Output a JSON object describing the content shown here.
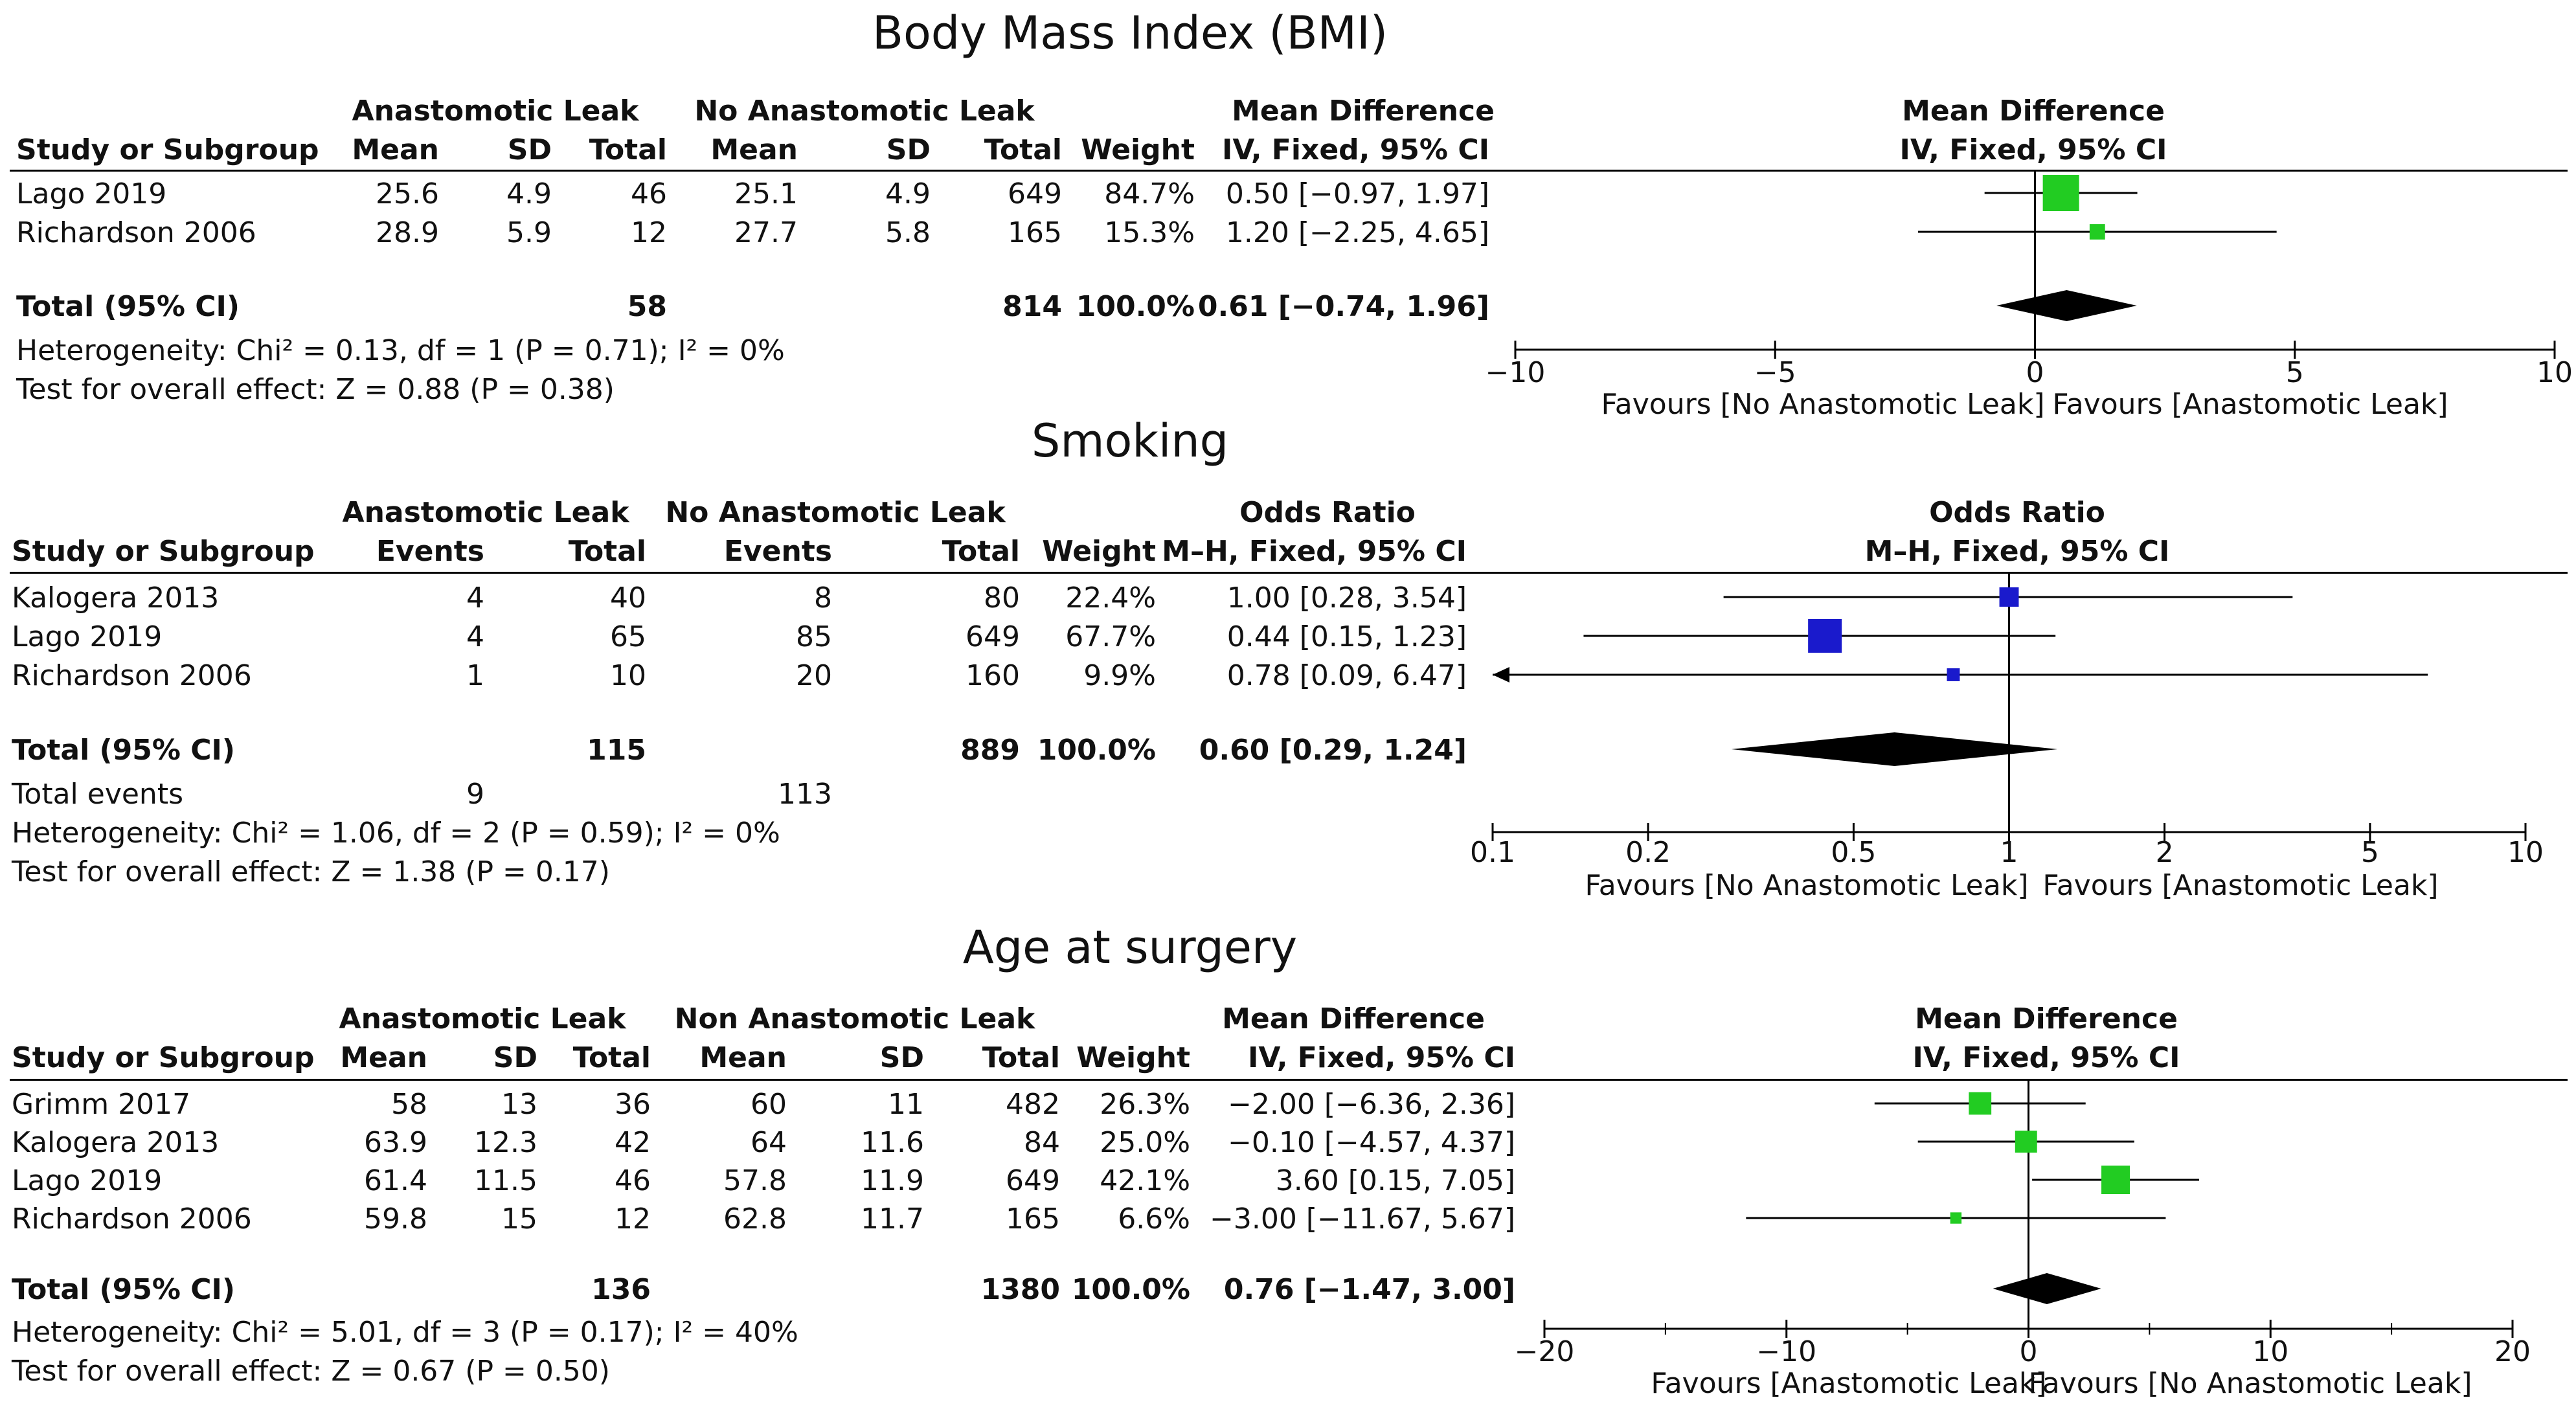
{
  "chart_data": [
    {
      "type": "forest",
      "title": "Body Mass Index (BMI)",
      "group1_label": "Anastomotic Leak",
      "group2_label": "No Anastomotic Leak",
      "study_header": "Study or Subgroup",
      "cols_group1": [
        "Mean",
        "SD",
        "Total"
      ],
      "cols_group2": [
        "Mean",
        "SD",
        "Total"
      ],
      "weight_header": "Weight",
      "effect_header": "Mean Difference",
      "effect_subheader": "IV, Fixed, 95% CI",
      "studies": [
        {
          "name": "Lago 2019",
          "g1": [
            "25.6",
            "4.9",
            "46"
          ],
          "g2": [
            "25.1",
            "4.9",
            "649"
          ],
          "weight": "84.7%",
          "ci_text": "0.50 [−0.97, 1.97]",
          "est": 0.5,
          "lo": -0.97,
          "hi": 1.97,
          "w": 84.7
        },
        {
          "name": "Richardson 2006",
          "g1": [
            "28.9",
            "5.9",
            "12"
          ],
          "g2": [
            "27.7",
            "5.8",
            "165"
          ],
          "weight": "15.3%",
          "ci_text": "1.20 [−2.25, 4.65]",
          "est": 1.2,
          "lo": -2.25,
          "hi": 4.65,
          "w": 15.3
        }
      ],
      "total": {
        "label": "Total (95% CI)",
        "g1_total": "58",
        "g2_total": "814",
        "weight": "100.0%",
        "ci_text": "0.61 [−0.74, 1.96]",
        "est": 0.61,
        "lo": -0.74,
        "hi": 1.96
      },
      "total_events": null,
      "heterogeneity": "Heterogeneity: Chi² = 0.13, df = 1 (P = 0.71); I² = 0%",
      "overall": "Test for overall effect: Z = 0.88 (P = 0.38)",
      "axis": {
        "scale": "linear",
        "min": -10,
        "max": 10,
        "ticks": [
          -10,
          -5,
          0,
          5,
          10
        ],
        "tick_labels": [
          "−10",
          "−5",
          "0",
          "5",
          "10"
        ],
        "minor": []
      },
      "favours_left": "Favours [No Anastomotic Leak]",
      "favours_right": "Favours [Anastomotic Leak]",
      "color": "#22cc22"
    },
    {
      "type": "forest",
      "title": "Smoking",
      "group1_label": "Anastomotic Leak",
      "group2_label": "No Anastomotic Leak",
      "study_header": "Study or Subgroup",
      "cols_group1": [
        "Events",
        "Total"
      ],
      "cols_group2": [
        "Events",
        "Total"
      ],
      "weight_header": "Weight",
      "effect_header": "Odds Ratio",
      "effect_subheader": "M–H, Fixed, 95% CI",
      "studies": [
        {
          "name": "Kalogera 2013",
          "g1": [
            "4",
            "40"
          ],
          "g2": [
            "8",
            "80"
          ],
          "weight": "22.4%",
          "ci_text": "1.00 [0.28, 3.54]",
          "est": 1.0,
          "lo": 0.28,
          "hi": 3.54,
          "w": 22.4
        },
        {
          "name": "Lago 2019",
          "g1": [
            "4",
            "65"
          ],
          "g2": [
            "85",
            "649"
          ],
          "weight": "67.7%",
          "ci_text": "0.44 [0.15, 1.23]",
          "est": 0.44,
          "lo": 0.15,
          "hi": 1.23,
          "w": 67.7
        },
        {
          "name": "Richardson 2006",
          "g1": [
            "1",
            "10"
          ],
          "g2": [
            "20",
            "160"
          ],
          "weight": "9.9%",
          "ci_text": "0.78 [0.09, 6.47]",
          "est": 0.78,
          "lo": 0.09,
          "hi": 6.47,
          "w": 9.9
        }
      ],
      "total": {
        "label": "Total (95% CI)",
        "g1_total": "115",
        "g2_total": "889",
        "weight": "100.0%",
        "ci_text": "0.60 [0.29, 1.24]",
        "est": 0.6,
        "lo": 0.29,
        "hi": 1.24
      },
      "total_events": {
        "label": "Total events",
        "g1": "9",
        "g2": "113"
      },
      "heterogeneity": "Heterogeneity: Chi² = 1.06, df = 2 (P = 0.59); I² = 0%",
      "overall": "Test for overall effect: Z = 1.38 (P = 0.17)",
      "axis": {
        "scale": "log",
        "min": 0.1,
        "max": 10,
        "ticks": [
          0.1,
          0.2,
          0.5,
          1,
          2,
          5,
          10
        ],
        "tick_labels": [
          "0.1",
          "0.2",
          "0.5",
          "1",
          "2",
          "5",
          "10"
        ],
        "minor": []
      },
      "favours_left": "Favours [No Anastomotic Leak]",
      "favours_right": "Favours [Anastomotic Leak]",
      "color": "#1a1acc"
    },
    {
      "type": "forest",
      "title": "Age at surgery",
      "group1_label": "Anastomotic Leak",
      "group2_label": "Non Anastomotic Leak",
      "study_header": "Study or Subgroup",
      "cols_group1": [
        "Mean",
        "SD",
        "Total"
      ],
      "cols_group2": [
        "Mean",
        "SD",
        "Total"
      ],
      "weight_header": "Weight",
      "effect_header": "Mean Difference",
      "effect_subheader": "IV, Fixed, 95% CI",
      "studies": [
        {
          "name": "Grimm 2017",
          "g1": [
            "58",
            "13",
            "36"
          ],
          "g2": [
            "60",
            "11",
            "482"
          ],
          "weight": "26.3%",
          "ci_text": "−2.00 [−6.36, 2.36]",
          "est": -2.0,
          "lo": -6.36,
          "hi": 2.36,
          "w": 26.3
        },
        {
          "name": "Kalogera 2013",
          "g1": [
            "63.9",
            "12.3",
            "42"
          ],
          "g2": [
            "64",
            "11.6",
            "84"
          ],
          "weight": "25.0%",
          "ci_text": "−0.10 [−4.57, 4.37]",
          "est": -0.1,
          "lo": -4.57,
          "hi": 4.37,
          "w": 25.0
        },
        {
          "name": "Lago 2019",
          "g1": [
            "61.4",
            "11.5",
            "46"
          ],
          "g2": [
            "57.8",
            "11.9",
            "649"
          ],
          "weight": "42.1%",
          "ci_text": "3.60 [0.15, 7.05]",
          "est": 3.6,
          "lo": 0.15,
          "hi": 7.05,
          "w": 42.1
        },
        {
          "name": "Richardson 2006",
          "g1": [
            "59.8",
            "15",
            "12"
          ],
          "g2": [
            "62.8",
            "11.7",
            "165"
          ],
          "weight": "6.6%",
          "ci_text": "−3.00 [−11.67, 5.67]",
          "est": -3.0,
          "lo": -11.67,
          "hi": 5.67,
          "w": 6.6
        }
      ],
      "total": {
        "label": "Total (95% CI)",
        "g1_total": "136",
        "g2_total": "1380",
        "weight": "100.0%",
        "ci_text": "0.76 [−1.47, 3.00]",
        "est": 0.76,
        "lo": -1.47,
        "hi": 3.0
      },
      "total_events": null,
      "heterogeneity": "Heterogeneity: Chi² = 5.01, df = 3 (P = 0.17); I² = 40%",
      "overall": "Test for overall effect: Z = 0.67 (P = 0.50)",
      "axis": {
        "scale": "linear",
        "min": -20,
        "max": 20,
        "ticks": [
          -20,
          -10,
          0,
          10,
          20
        ],
        "tick_labels": [
          "−20",
          "−10",
          "0",
          "10",
          "20"
        ],
        "minor": [
          -15,
          -5,
          5,
          15
        ]
      },
      "favours_left": "Favours [Anastomotic Leak]",
      "favours_right": "Favours [No Anastomotic Leak]",
      "color": "#22cc22"
    }
  ]
}
